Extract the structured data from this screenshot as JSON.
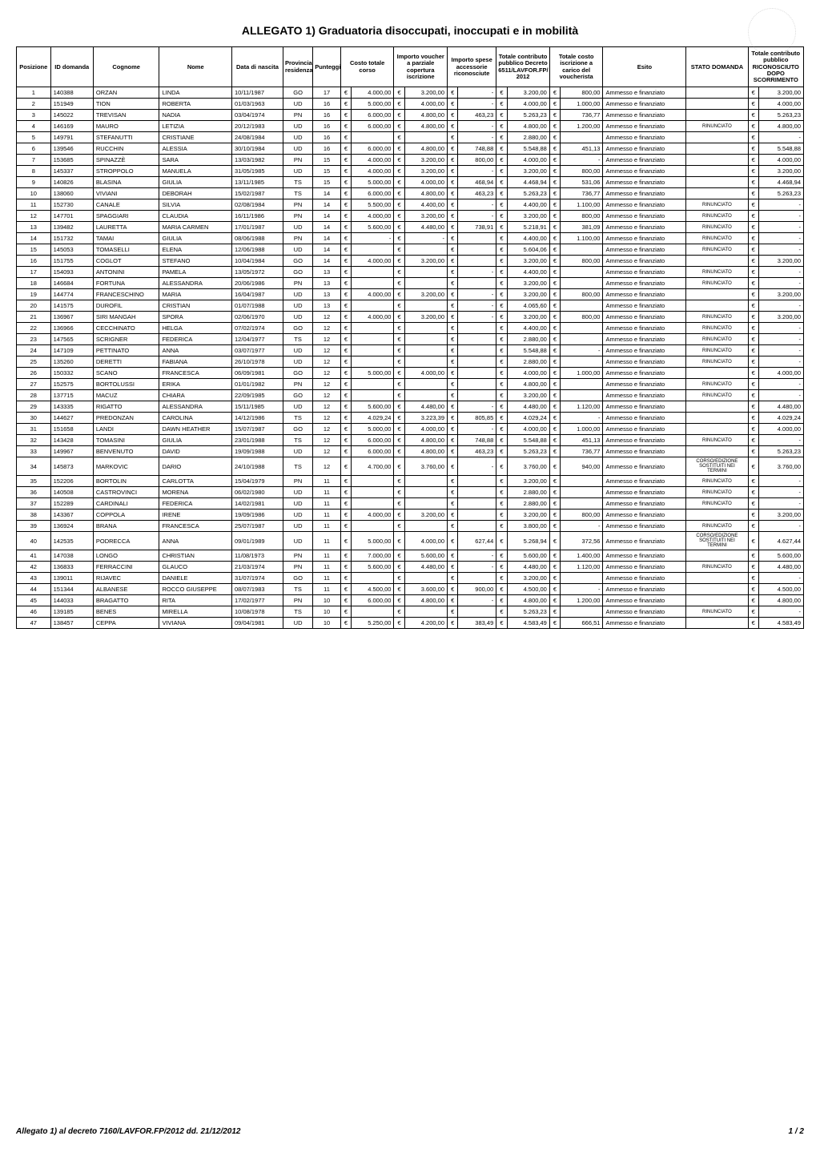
{
  "title": "ALLEGATO 1) Graduatoria disoccupati, inoccupati e in mobilità",
  "footer_left": "Allegato 1) al decreto 7160/LAVFOR.FP/2012 dd. 21/12/2012",
  "footer_right": "1 / 2",
  "columns": [
    "Posizione",
    "ID domanda",
    "Cognome",
    "Nome",
    "Data di nascita",
    "Provincia residenza",
    "Punteggio",
    "Costo totale corso",
    "Importo voucher a parziale copertura iscrizione",
    "Importo spese accessorie riconosciute",
    "Totale contributo pubblico Decreto 6511/LAVFOR.FP/ 2012",
    "Totale costo iscrizione a carico del voucherista",
    "Esito",
    "STATO DOMANDA",
    "Totale contributo pubblico RICONOSCIUTO DOPO SCORRIMENTO"
  ],
  "rows": [
    {
      "pos": "1",
      "id": "140388",
      "cog": "ORZAN",
      "nome": "LINDA",
      "data": "10/11/1987",
      "prov": "GO",
      "punt": "17",
      "costo": "4.000,00",
      "vouch": "3.200,00",
      "spese": "-",
      "contr": "3.200,00",
      "carico": "800,00",
      "esito": "Ammesso e finanziato",
      "stato": "",
      "dopo": "3.200,00"
    },
    {
      "pos": "2",
      "id": "151949",
      "cog": "TION",
      "nome": "ROBERTA",
      "data": "01/03/1963",
      "prov": "UD",
      "punt": "16",
      "costo": "5.000,00",
      "vouch": "4.000,00",
      "spese": "-",
      "contr": "4.000,00",
      "carico": "1.000,00",
      "esito": "Ammesso e finanziato",
      "stato": "",
      "dopo": "4.000,00"
    },
    {
      "pos": "3",
      "id": "145022",
      "cog": "TREVISAN",
      "nome": "NADIA",
      "data": "03/04/1974",
      "prov": "PN",
      "punt": "16",
      "costo": "6.000,00",
      "vouch": "4.800,00",
      "spese": "463,23",
      "contr": "5.263,23",
      "carico": "736,77",
      "esito": "Ammesso e finanziato",
      "stato": "",
      "dopo": "5.263,23"
    },
    {
      "pos": "4",
      "id": "146169",
      "cog": "MAURO",
      "nome": "LETIZIA",
      "data": "20/12/1983",
      "prov": "UD",
      "punt": "16",
      "costo": "6.000,00",
      "vouch": "4.800,00",
      "spese": "-",
      "contr": "4.800,00",
      "carico": "1.200,00",
      "esito": "Ammesso e finanziato",
      "stato": "RINUNCIATO",
      "dopo": "4.800,00"
    },
    {
      "pos": "5",
      "id": "149791",
      "cog": "STEFANUTTI",
      "nome": "CRISTIANE",
      "data": "24/08/1984",
      "prov": "UD",
      "punt": "16",
      "costo": "",
      "vouch": "",
      "spese": "-",
      "contr": "2.880,00",
      "carico": "",
      "esito": "Ammesso e finanziato",
      "stato": "",
      "dopo": "-"
    },
    {
      "pos": "6",
      "id": "139546",
      "cog": "RUCCHIN",
      "nome": "ALESSIA",
      "data": "30/10/1984",
      "prov": "UD",
      "punt": "16",
      "costo": "6.000,00",
      "vouch": "4.800,00",
      "spese": "748,88",
      "contr": "5.548,88",
      "carico": "451,13",
      "esito": "Ammesso e finanziato",
      "stato": "",
      "dopo": "5.548,88"
    },
    {
      "pos": "7",
      "id": "153685",
      "cog": "SPINAZZÈ",
      "nome": "SARA",
      "data": "13/03/1982",
      "prov": "PN",
      "punt": "15",
      "costo": "4.000,00",
      "vouch": "3.200,00",
      "spese": "800,00",
      "contr": "4.000,00",
      "carico": "-",
      "esito": "Ammesso e finanziato",
      "stato": "",
      "dopo": "4.000,00"
    },
    {
      "pos": "8",
      "id": "145337",
      "cog": "STROPPOLO",
      "nome": "MANUELA",
      "data": "31/05/1985",
      "prov": "UD",
      "punt": "15",
      "costo": "4.000,00",
      "vouch": "3.200,00",
      "spese": "-",
      "contr": "3.200,00",
      "carico": "800,00",
      "esito": "Ammesso e finanziato",
      "stato": "",
      "dopo": "3.200,00"
    },
    {
      "pos": "9",
      "id": "140826",
      "cog": "BLASINA",
      "nome": "GIULIA",
      "data": "13/11/1985",
      "prov": "TS",
      "punt": "15",
      "costo": "5.000,00",
      "vouch": "4.000,00",
      "spese": "468,94",
      "contr": "4.468,94",
      "carico": "531,06",
      "esito": "Ammesso e finanziato",
      "stato": "",
      "dopo": "4.468,94"
    },
    {
      "pos": "10",
      "id": "138060",
      "cog": "VIVIANI",
      "nome": "DEBORAH",
      "data": "15/02/1987",
      "prov": "TS",
      "punt": "14",
      "costo": "6.000,00",
      "vouch": "4.800,00",
      "spese": "463,23",
      "contr": "5.263,23",
      "carico": "736,77",
      "esito": "Ammesso e finanziato",
      "stato": "",
      "dopo": "5.263,23"
    },
    {
      "pos": "11",
      "id": "152730",
      "cog": "CANALE",
      "nome": "SILVIA",
      "data": "02/08/1984",
      "prov": "PN",
      "punt": "14",
      "costo": "5.500,00",
      "vouch": "4.400,00",
      "spese": "-",
      "contr": "4.400,00",
      "carico": "1.100,00",
      "esito": "Ammesso e finanziato",
      "stato": "RINUNCIATO",
      "dopo": "-"
    },
    {
      "pos": "12",
      "id": "147701",
      "cog": "SPAGGIARI",
      "nome": "CLAUDIA",
      "data": "16/11/1986",
      "prov": "PN",
      "punt": "14",
      "costo": "4.000,00",
      "vouch": "3.200,00",
      "spese": "-",
      "contr": "3.200,00",
      "carico": "800,00",
      "esito": "Ammesso e finanziato",
      "stato": "RINUNCIATO",
      "dopo": "-"
    },
    {
      "pos": "13",
      "id": "139482",
      "cog": "LAURETTA",
      "nome": "MARIA CARMEN",
      "data": "17/01/1987",
      "prov": "UD",
      "punt": "14",
      "costo": "5.600,00",
      "vouch": "4.480,00",
      "spese": "738,91",
      "contr": "5.218,91",
      "carico": "381,09",
      "esito": "Ammesso e finanziato",
      "stato": "RINUNCIATO",
      "dopo": "-"
    },
    {
      "pos": "14",
      "id": "151732",
      "cog": "TAMAI",
      "nome": "GIULIA",
      "data": "08/06/1988",
      "prov": "PN",
      "punt": "14",
      "costo": "-",
      "vouch": "-",
      "spese": "",
      "contr": "4.400,00",
      "carico": "1.100,00",
      "esito": "Ammesso e finanziato",
      "stato": "RINUNCIATO",
      "dopo": "-"
    },
    {
      "pos": "15",
      "id": "145053",
      "cog": "TOMASELLI",
      "nome": "ELENA",
      "data": "12/06/1988",
      "prov": "UD",
      "punt": "14",
      "costo": "",
      "vouch": "",
      "spese": "",
      "contr": "5.604,06",
      "carico": "",
      "esito": "Ammesso e finanziato",
      "stato": "RINUNCIATO",
      "dopo": "-"
    },
    {
      "pos": "16",
      "id": "151755",
      "cog": "COGLOT",
      "nome": "STEFANO",
      "data": "10/04/1984",
      "prov": "GO",
      "punt": "14",
      "costo": "4.000,00",
      "vouch": "3.200,00",
      "spese": "",
      "contr": "3.200,00",
      "carico": "800,00",
      "esito": "Ammesso e finanziato",
      "stato": "",
      "dopo": "3.200,00"
    },
    {
      "pos": "17",
      "id": "154093",
      "cog": "ANTONINI",
      "nome": "PAMELA",
      "data": "13/05/1972",
      "prov": "GO",
      "punt": "13",
      "costo": "",
      "vouch": "",
      "spese": "-",
      "contr": "4.400,00",
      "carico": "",
      "esito": "Ammesso e finanziato",
      "stato": "RINUNCIATO",
      "dopo": "-"
    },
    {
      "pos": "18",
      "id": "146684",
      "cog": "FORTUNA",
      "nome": "ALESSANDRA",
      "data": "20/06/1986",
      "prov": "PN",
      "punt": "13",
      "costo": "",
      "vouch": "",
      "spese": "",
      "contr": "3.200,00",
      "carico": "",
      "esito": "Ammesso e finanziato",
      "stato": "RINUNCIATO",
      "dopo": "-"
    },
    {
      "pos": "19",
      "id": "144774",
      "cog": "FRANCESCHINO",
      "nome": "MARIA",
      "data": "16/04/1987",
      "prov": "UD",
      "punt": "13",
      "costo": "4.000,00",
      "vouch": "3.200,00",
      "spese": "-",
      "contr": "3.200,00",
      "carico": "800,00",
      "esito": "Ammesso e finanziato",
      "stato": "",
      "dopo": "3.200,00"
    },
    {
      "pos": "20",
      "id": "141575",
      "cog": "DUROFIL",
      "nome": "CRISTIAN",
      "data": "01/07/1988",
      "prov": "UD",
      "punt": "13",
      "costo": "",
      "vouch": "",
      "spese": "-",
      "contr": "4.065,60",
      "carico": "",
      "esito": "Ammesso e finanziato",
      "stato": "",
      "dopo": "-"
    },
    {
      "pos": "21",
      "id": "136967",
      "cog": "SIRI MANGAH",
      "nome": "SPORA",
      "data": "02/06/1970",
      "prov": "UD",
      "punt": "12",
      "costo": "4.000,00",
      "vouch": "3.200,00",
      "spese": "-",
      "contr": "3.200,00",
      "carico": "800,00",
      "esito": "Ammesso e finanziato",
      "stato": "RINUNCIATO",
      "dopo": "3.200,00"
    },
    {
      "pos": "22",
      "id": "136966",
      "cog": "CECCHINATO",
      "nome": "HELGA",
      "data": "07/02/1974",
      "prov": "GO",
      "punt": "12",
      "costo": "",
      "vouch": "",
      "spese": "",
      "contr": "4.400,00",
      "carico": "",
      "esito": "Ammesso e finanziato",
      "stato": "RINUNCIATO",
      "dopo": "-"
    },
    {
      "pos": "23",
      "id": "147565",
      "cog": "SCRIGNER",
      "nome": "FEDERICA",
      "data": "12/04/1977",
      "prov": "TS",
      "punt": "12",
      "costo": "",
      "vouch": "",
      "spese": "",
      "contr": "2.880,00",
      "carico": "",
      "esito": "Ammesso e finanziato",
      "stato": "RINUNCIATO",
      "dopo": "-"
    },
    {
      "pos": "24",
      "id": "147109",
      "cog": "PETTINATO",
      "nome": "ANNA",
      "data": "03/07/1977",
      "prov": "UD",
      "punt": "12",
      "costo": "",
      "vouch": "",
      "spese": "",
      "contr": "5.548,88",
      "carico": "-",
      "esito": "Ammesso e finanziato",
      "stato": "RINUNCIATO",
      "dopo": "-"
    },
    {
      "pos": "25",
      "id": "135260",
      "cog": "DERETTI",
      "nome": "FABIANA",
      "data": "26/10/1978",
      "prov": "UD",
      "punt": "12",
      "costo": "",
      "vouch": "",
      "spese": "",
      "contr": "2.880,00",
      "carico": "",
      "esito": "Ammesso e finanziato",
      "stato": "RINUNCIATO",
      "dopo": "-"
    },
    {
      "pos": "26",
      "id": "150332",
      "cog": "SCANO",
      "nome": "FRANCESCA",
      "data": "06/09/1981",
      "prov": "GO",
      "punt": "12",
      "costo": "5.000,00",
      "vouch": "4.000,00",
      "spese": "",
      "contr": "4.000,00",
      "carico": "1.000,00",
      "esito": "Ammesso e finanziato",
      "stato": "",
      "dopo": "4.000,00"
    },
    {
      "pos": "27",
      "id": "152575",
      "cog": "BORTOLUSSI",
      "nome": "ERIKA",
      "data": "01/01/1982",
      "prov": "PN",
      "punt": "12",
      "costo": "",
      "vouch": "",
      "spese": "",
      "contr": "4.800,00",
      "carico": "",
      "esito": "Ammesso e finanziato",
      "stato": "RINUNCIATO",
      "dopo": "-"
    },
    {
      "pos": "28",
      "id": "137715",
      "cog": "MACUZ",
      "nome": "CHIARA",
      "data": "22/09/1985",
      "prov": "GO",
      "punt": "12",
      "costo": "",
      "vouch": "",
      "spese": "",
      "contr": "3.200,00",
      "carico": "",
      "esito": "Ammesso e finanziato",
      "stato": "RINUNCIATO",
      "dopo": "-"
    },
    {
      "pos": "29",
      "id": "143335",
      "cog": "RIGATTO",
      "nome": "ALESSANDRA",
      "data": "15/11/1985",
      "prov": "UD",
      "punt": "12",
      "costo": "5.600,00",
      "vouch": "4.480,00",
      "spese": "-",
      "contr": "4.480,00",
      "carico": "1.120,00",
      "esito": "Ammesso e finanziato",
      "stato": "",
      "dopo": "4.480,00"
    },
    {
      "pos": "30",
      "id": "144627",
      "cog": "PREDONZAN",
      "nome": "CAROLINA",
      "data": "14/12/1986",
      "prov": "TS",
      "punt": "12",
      "costo": "4.029,24",
      "vouch": "3.223,39",
      "spese": "805,85",
      "contr": "4.029,24",
      "carico": "-",
      "esito": "Ammesso e finanziato",
      "stato": "",
      "dopo": "4.029,24"
    },
    {
      "pos": "31",
      "id": "151658",
      "cog": "LANDI",
      "nome": "DAWN HEATHER",
      "data": "15/07/1987",
      "prov": "GO",
      "punt": "12",
      "costo": "5.000,00",
      "vouch": "4.000,00",
      "spese": "-",
      "contr": "4.000,00",
      "carico": "1.000,00",
      "esito": "Ammesso e finanziato",
      "stato": "",
      "dopo": "4.000,00"
    },
    {
      "pos": "32",
      "id": "143428",
      "cog": "TOMASINI",
      "nome": "GIULIA",
      "data": "23/01/1988",
      "prov": "TS",
      "punt": "12",
      "costo": "6.000,00",
      "vouch": "4.800,00",
      "spese": "748,88",
      "contr": "5.548,88",
      "carico": "451,13",
      "esito": "Ammesso e finanziato",
      "stato": "RINUNCIATO",
      "dopo": "-"
    },
    {
      "pos": "33",
      "id": "149967",
      "cog": "BENVENUTO",
      "nome": "DAVID",
      "data": "19/09/1988",
      "prov": "UD",
      "punt": "12",
      "costo": "6.000,00",
      "vouch": "4.800,00",
      "spese": "463,23",
      "contr": "5.263,23",
      "carico": "736,77",
      "esito": "Ammesso e finanziato",
      "stato": "",
      "dopo": "5.263,23"
    },
    {
      "pos": "34",
      "id": "145873",
      "cog": "MARKOVIC",
      "nome": "DARIO",
      "data": "24/10/1988",
      "prov": "TS",
      "punt": "12",
      "costo": "4.700,00",
      "vouch": "3.760,00",
      "spese": "-",
      "contr": "3.760,00",
      "carico": "940,00",
      "esito": "Ammesso e finanziato",
      "stato": "CORSO/EDIZIONE SOSTITUITI NEI TERMINI",
      "dopo": "3.760,00"
    },
    {
      "pos": "35",
      "id": "152206",
      "cog": "BORTOLIN",
      "nome": "CARLOTTA",
      "data": "15/04/1979",
      "prov": "PN",
      "punt": "11",
      "costo": "",
      "vouch": "",
      "spese": "",
      "contr": "3.200,00",
      "carico": "",
      "esito": "Ammesso e finanziato",
      "stato": "RINUNCIATO",
      "dopo": "-"
    },
    {
      "pos": "36",
      "id": "140508",
      "cog": "CASTROVINCI",
      "nome": "MORENA",
      "data": "06/02/1980",
      "prov": "UD",
      "punt": "11",
      "costo": "",
      "vouch": "",
      "spese": "",
      "contr": "2.880,00",
      "carico": "",
      "esito": "Ammesso e finanziato",
      "stato": "RINUNCIATO",
      "dopo": "-"
    },
    {
      "pos": "37",
      "id": "152289",
      "cog": "CARDINALI",
      "nome": "FEDERICA",
      "data": "14/02/1981",
      "prov": "UD",
      "punt": "11",
      "costo": "",
      "vouch": "",
      "spese": "",
      "contr": "2.880,00",
      "carico": "",
      "esito": "Ammesso e finanziato",
      "stato": "RINUNCIATO",
      "dopo": "-"
    },
    {
      "pos": "38",
      "id": "143367",
      "cog": "COPPOLA",
      "nome": "IRENE",
      "data": "19/09/1986",
      "prov": "UD",
      "punt": "11",
      "costo": "4.000,00",
      "vouch": "3.200,00",
      "spese": "",
      "contr": "3.200,00",
      "carico": "800,00",
      "esito": "Ammesso e finanziato",
      "stato": "",
      "dopo": "3.200,00"
    },
    {
      "pos": "39",
      "id": "136924",
      "cog": "BRANA",
      "nome": "FRANCESCA",
      "data": "25/07/1987",
      "prov": "UD",
      "punt": "11",
      "costo": "",
      "vouch": "",
      "spese": "",
      "contr": "3.800,00",
      "carico": "-",
      "esito": "Ammesso e finanziato",
      "stato": "RINUNCIATO",
      "dopo": "-"
    },
    {
      "pos": "40",
      "id": "142535",
      "cog": "PODRECCA",
      "nome": "ANNA",
      "data": "09/01/1989",
      "prov": "UD",
      "punt": "11",
      "costo": "5.000,00",
      "vouch": "4.000,00",
      "spese": "627,44",
      "contr": "5.268,94",
      "carico": "372,56",
      "esito": "Ammesso e finanziato",
      "stato": "CORSO/EDIZIONE SOSTITUITI NEI TERMINI",
      "dopo": "4.627,44"
    },
    {
      "pos": "41",
      "id": "147038",
      "cog": "LONGO",
      "nome": "CHRISTIAN",
      "data": "11/08/1973",
      "prov": "PN",
      "punt": "11",
      "costo": "7.000,00",
      "vouch": "5.600,00",
      "spese": "-",
      "contr": "5.600,00",
      "carico": "1.400,00",
      "esito": "Ammesso e finanziato",
      "stato": "",
      "dopo": "5.600,00"
    },
    {
      "pos": "42",
      "id": "136833",
      "cog": "FERRACCINI",
      "nome": "GLAUCO",
      "data": "21/03/1974",
      "prov": "PN",
      "punt": "11",
      "costo": "5.600,00",
      "vouch": "4.480,00",
      "spese": "-",
      "contr": "4.480,00",
      "carico": "1.120,00",
      "esito": "Ammesso e finanziato",
      "stato": "RINUNCIATO",
      "dopo": "4.480,00"
    },
    {
      "pos": "43",
      "id": "139011",
      "cog": "RIJAVEC",
      "nome": "DANIELE",
      "data": "31/07/1974",
      "prov": "GO",
      "punt": "11",
      "costo": "",
      "vouch": "",
      "spese": "",
      "contr": "3.200,00",
      "carico": "",
      "esito": "Ammesso e finanziato",
      "stato": "",
      "dopo": "-"
    },
    {
      "pos": "44",
      "id": "151344",
      "cog": "ALBANESE",
      "nome": "ROCCO GIUSEPPE",
      "data": "08/07/1983",
      "prov": "TS",
      "punt": "11",
      "costo": "4.500,00",
      "vouch": "3.600,00",
      "spese": "900,00",
      "contr": "4.500,00",
      "carico": "-",
      "esito": "Ammesso e finanziato",
      "stato": "",
      "dopo": "4.500,00"
    },
    {
      "pos": "45",
      "id": "144033",
      "cog": "BRAGATTO",
      "nome": "RITA",
      "data": "17/02/1977",
      "prov": "PN",
      "punt": "10",
      "costo": "6.000,00",
      "vouch": "4.800,00",
      "spese": "-",
      "contr": "4.800,00",
      "carico": "1.200,00",
      "esito": "Ammesso e finanziato",
      "stato": "",
      "dopo": "4.800,00"
    },
    {
      "pos": "46",
      "id": "139185",
      "cog": "BENES",
      "nome": "MIRELLA",
      "data": "10/08/1978",
      "prov": "TS",
      "punt": "10",
      "costo": "",
      "vouch": "",
      "spese": "",
      "contr": "5.263,23",
      "carico": "",
      "esito": "Ammesso e finanziato",
      "stato": "RINUNCIATO",
      "dopo": "-"
    },
    {
      "pos": "47",
      "id": "138457",
      "cog": "CEPPA",
      "nome": "VIVIANA",
      "data": "09/04/1981",
      "prov": "UD",
      "punt": "10",
      "costo": "5.250,00",
      "vouch": "4.200,00",
      "spese": "383,49",
      "contr": "4.583,49",
      "carico": "666,51",
      "esito": "Ammesso e finanziato",
      "stato": "",
      "dopo": "4.583,49"
    }
  ]
}
